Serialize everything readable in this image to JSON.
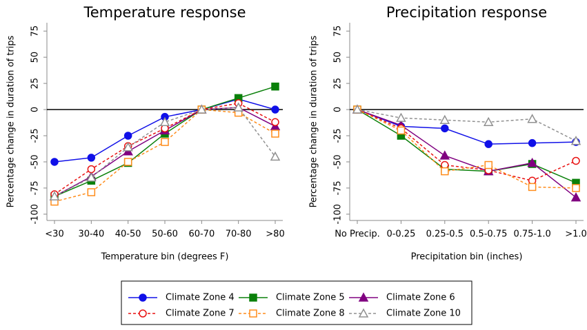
{
  "chart_data": [
    {
      "type": "line",
      "title": "Temperature response",
      "xlabel": "Temperature bin (degrees F)",
      "ylabel": "Percentage change in duration of trips",
      "categories": [
        "<30",
        "30-40",
        "40-50",
        "50-60",
        "60-70",
        "70-80",
        ">80"
      ],
      "ylim": [
        -106,
        83
      ],
      "yticks": [
        -100,
        -75,
        -50,
        -25,
        0,
        25,
        50,
        75
      ],
      "series": [
        {
          "values": [
            -50,
            -46,
            -25,
            -7,
            0,
            10,
            0
          ]
        },
        {
          "values": [
            -83,
            -68,
            -51,
            -23,
            0,
            11,
            22
          ]
        },
        {
          "values": [
            -83,
            -64,
            -40,
            -20,
            0,
            2,
            -16
          ]
        },
        {
          "values": [
            -81,
            -57,
            -35,
            -18,
            0,
            6,
            -12
          ]
        },
        {
          "values": [
            -88,
            -79,
            -50,
            -31,
            0,
            -3,
            -23
          ]
        },
        {
          "values": [
            -83,
            -65,
            -36,
            -12,
            0,
            2,
            -45
          ]
        }
      ]
    },
    {
      "type": "line",
      "title": "Precipitation response",
      "xlabel": "Precipitation bin (inches)",
      "ylabel": "Percentage change in duration of trips",
      "categories": [
        "No Precip.",
        "0-0.25",
        "0.25-0.5",
        "0.5-0.75",
        "0.75-1.0",
        ">1.0"
      ],
      "ylim": [
        -106,
        83
      ],
      "yticks": [
        -100,
        -75,
        -50,
        -25,
        0,
        25,
        50,
        75
      ],
      "series": [
        {
          "values": [
            0,
            -16,
            -18,
            -33,
            -32,
            -31
          ]
        },
        {
          "values": [
            0,
            -25,
            -57,
            -59,
            -52,
            -70
          ]
        },
        {
          "values": [
            0,
            -15,
            -44,
            -59,
            -51,
            -84
          ]
        },
        {
          "values": [
            0,
            -18,
            -53,
            -58,
            -68,
            -49
          ]
        },
        {
          "values": [
            0,
            -20,
            -59,
            -53,
            -74,
            -75
          ]
        },
        {
          "values": [
            0,
            -8,
            -10,
            -12,
            -9,
            -30
          ]
        }
      ]
    }
  ],
  "legend": [
    {
      "name": "Climate Zone 4",
      "color": "#1010e8",
      "marker": "circle",
      "filled": true,
      "dash": false
    },
    {
      "name": "Climate Zone 5",
      "color": "#0a800a",
      "marker": "square",
      "filled": true,
      "dash": false
    },
    {
      "name": "Climate Zone 6",
      "color": "#800080",
      "marker": "triangle",
      "filled": true,
      "dash": false
    },
    {
      "name": "Climate Zone 7",
      "color": "#e81010",
      "marker": "circle",
      "filled": false,
      "dash": true
    },
    {
      "name": "Climate Zone 8",
      "color": "#ff8c1a",
      "marker": "square",
      "filled": false,
      "dash": true
    },
    {
      "name": "Climate Zone 10",
      "color": "#909090",
      "marker": "triangle",
      "filled": false,
      "dash": true
    }
  ]
}
